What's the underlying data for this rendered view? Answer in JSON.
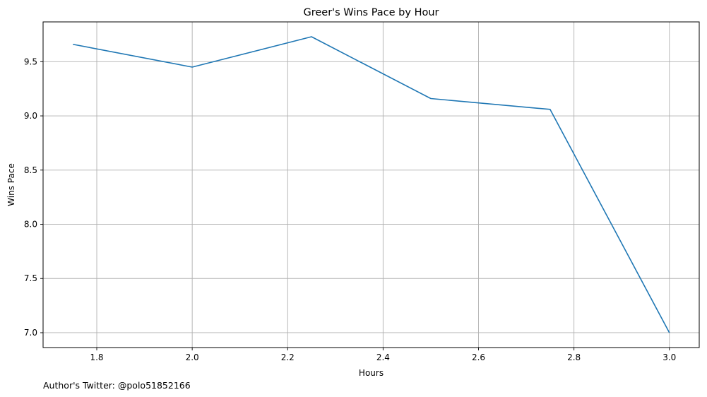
{
  "chart_data": {
    "type": "line",
    "title": "Greer's Wins Pace by Hour",
    "xlabel": "Hours",
    "ylabel": "Wins Pace",
    "x": [
      1.75,
      2.0,
      2.25,
      2.5,
      2.75,
      3.0
    ],
    "series": [
      {
        "values": [
          9.66,
          9.45,
          9.73,
          9.16,
          9.06,
          7.0
        ],
        "color": "#1f77b4"
      }
    ],
    "xlim": [
      1.6875,
      3.0625
    ],
    "ylim": [
      6.863,
      9.867
    ],
    "xticks": [
      "1.8",
      "2.0",
      "2.2",
      "2.4",
      "2.6",
      "2.8",
      "3.0"
    ],
    "yticks": [
      "7.0",
      "7.5",
      "8.0",
      "8.5",
      "9.0",
      "9.5"
    ],
    "grid": true,
    "legend": "none",
    "annotation": "Author's Twitter: @polo51852166"
  }
}
